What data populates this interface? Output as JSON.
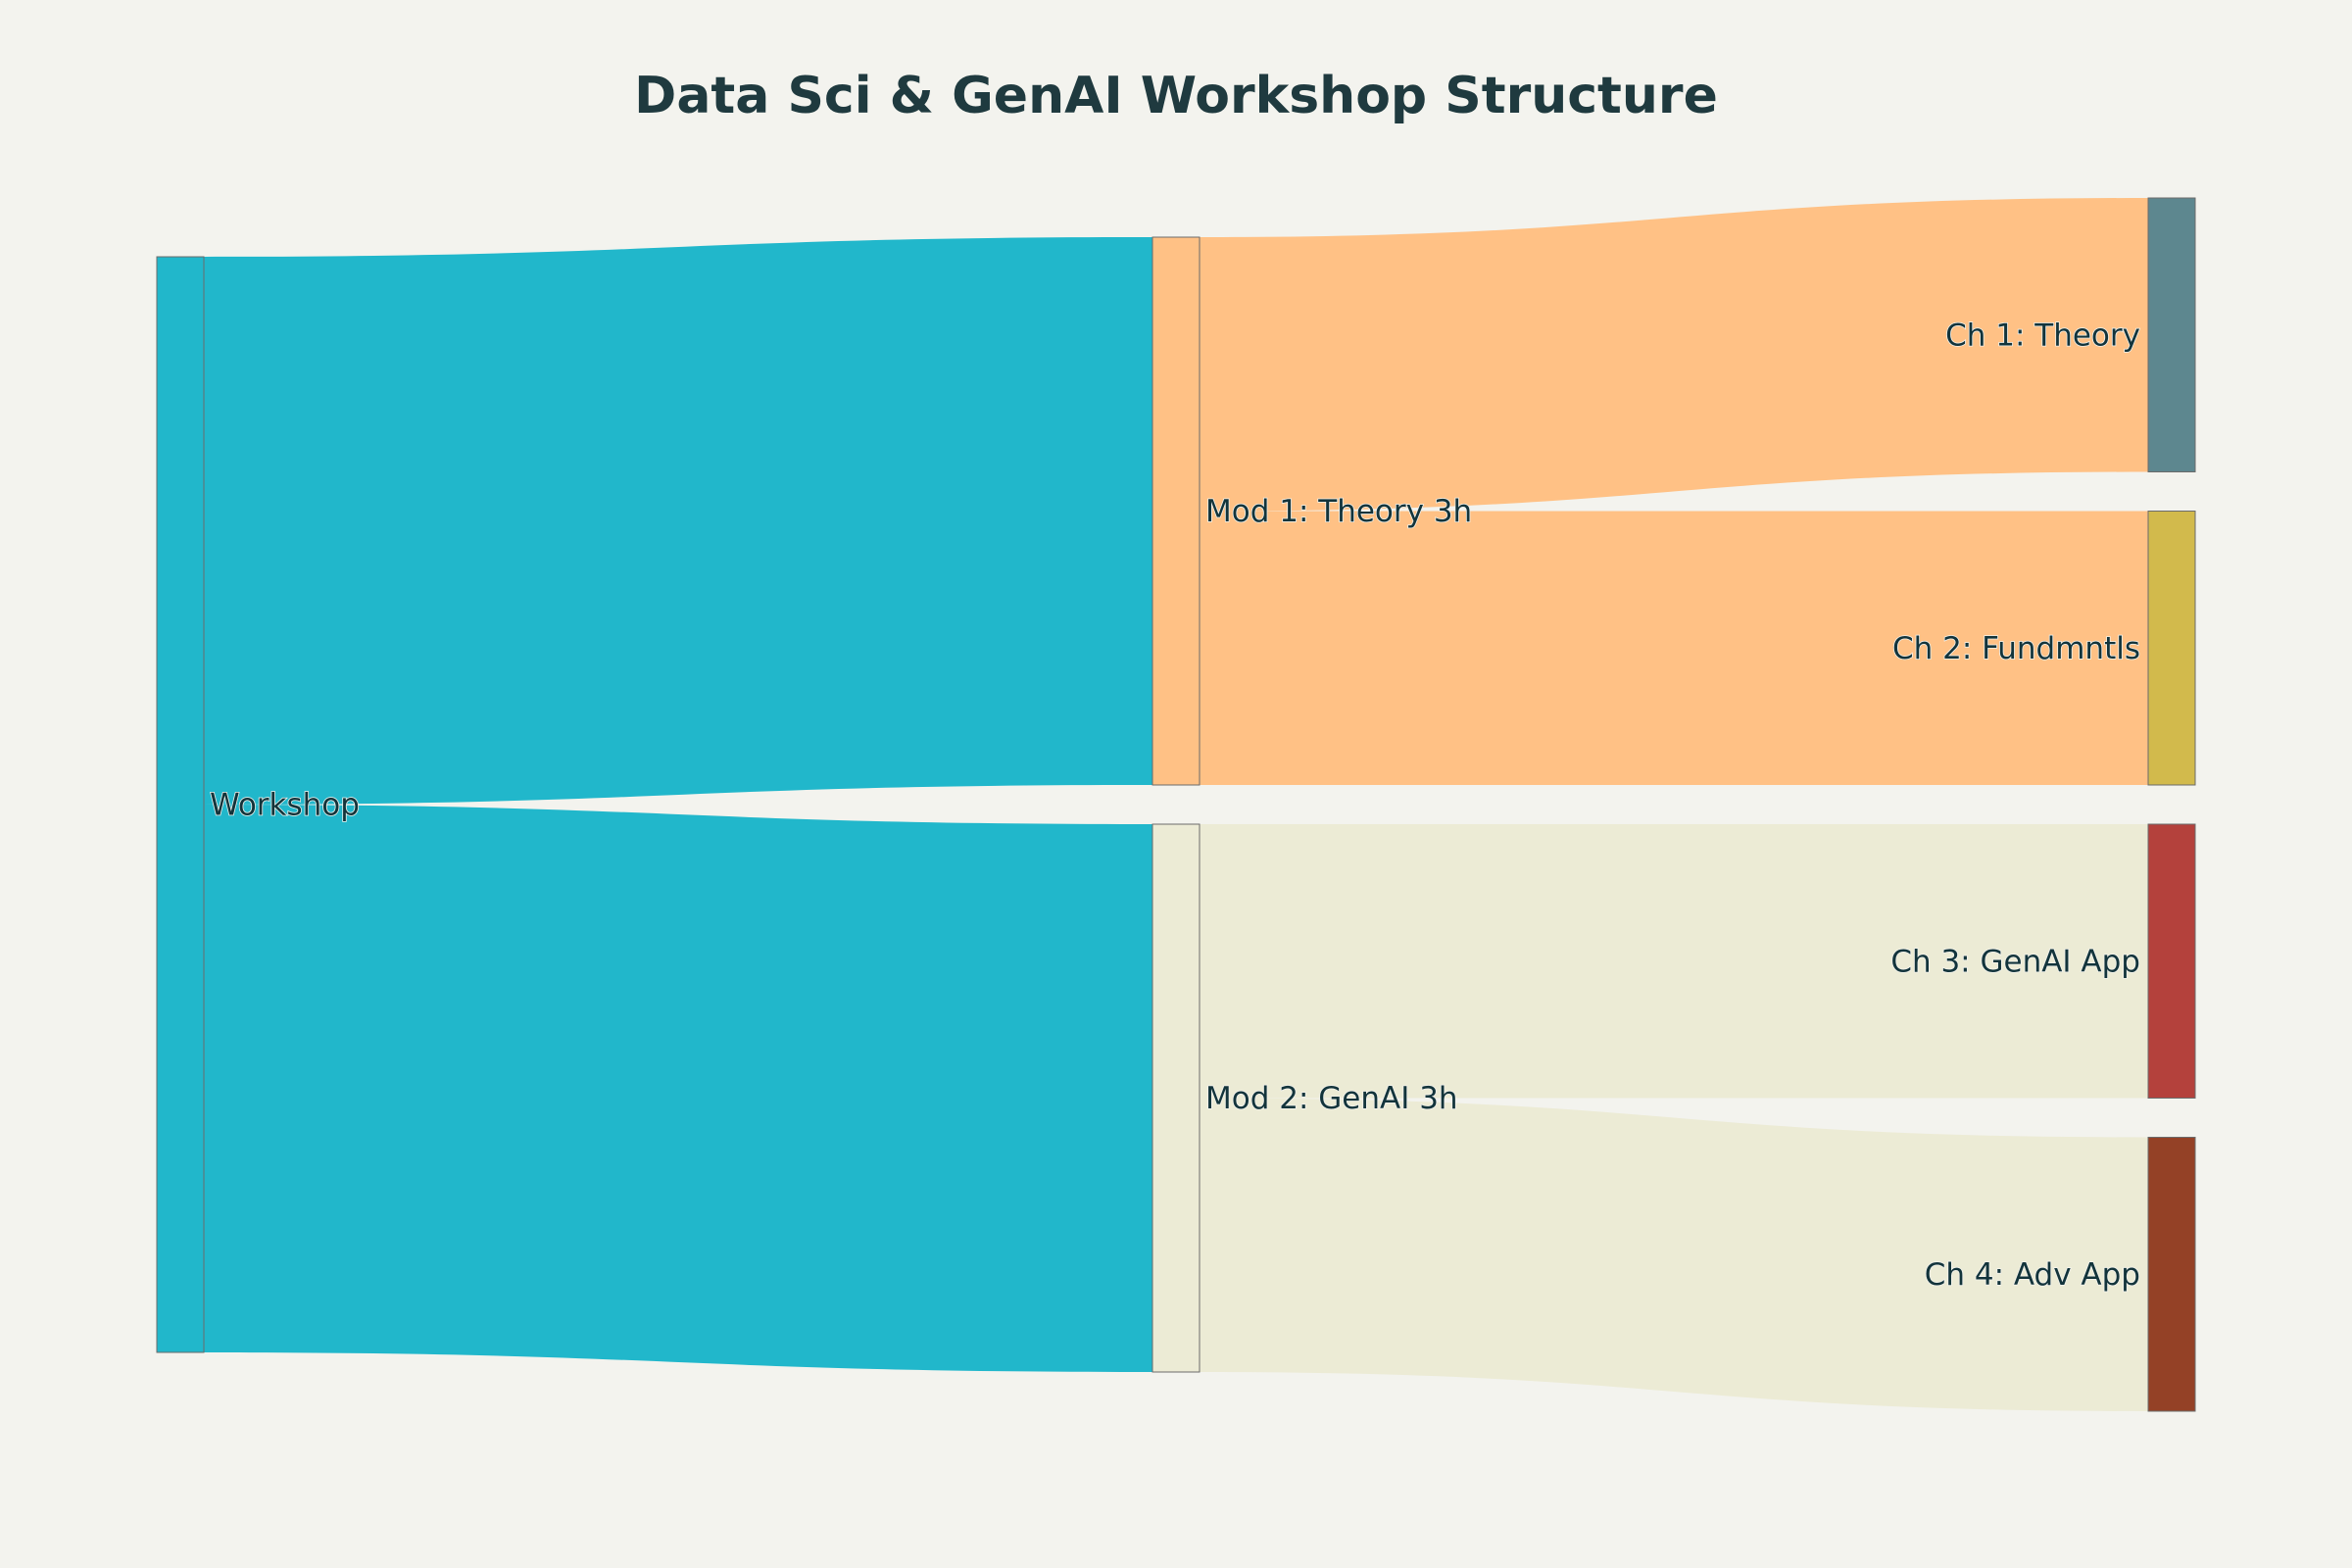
{
  "title": "Data Sci & GenAI Workshop Structure",
  "chart_data": {
    "type": "sankey",
    "nodes": [
      {
        "id": "workshop",
        "label": "Workshop",
        "color": "#21b7cb",
        "column": 0,
        "label_side": "right"
      },
      {
        "id": "mod1",
        "label": "Mod 1: Theory 3h",
        "color": "#ffc185",
        "column": 1,
        "label_side": "right"
      },
      {
        "id": "mod2",
        "label": "Mod 2: GenAI 3h",
        "color": "#ecebd5",
        "column": 1,
        "label_side": "right"
      },
      {
        "id": "ch1",
        "label": "Ch 1: Theory",
        "color": "#5d878f",
        "column": 2,
        "label_side": "left"
      },
      {
        "id": "ch2",
        "label": "Ch 2: Fundmntls",
        "color": "#d2ba4c",
        "column": 2,
        "label_side": "left"
      },
      {
        "id": "ch3",
        "label": "Ch 3: GenAI App",
        "color": "#b4413c",
        "column": 2,
        "label_side": "left"
      },
      {
        "id": "ch4",
        "label": "Ch 4: Adv App",
        "color": "#944454",
        "column": 2,
        "label_side": "left"
      }
    ],
    "links": [
      {
        "source": "workshop",
        "target": "mod1",
        "value": 3,
        "color": "#21b7cb"
      },
      {
        "source": "workshop",
        "target": "mod2",
        "value": 3,
        "color": "#21b7cb"
      },
      {
        "source": "mod1",
        "target": "ch1",
        "value": 1.5,
        "color": "#ffc185"
      },
      {
        "source": "mod1",
        "target": "ch2",
        "value": 1.5,
        "color": "#ffc185"
      },
      {
        "source": "mod2",
        "target": "ch3",
        "value": 1.5,
        "color": "#ecebd5"
      },
      {
        "source": "mod2",
        "target": "ch4",
        "value": 1.5,
        "color": "#ecebd5"
      }
    ],
    "colors": {
      "background": "#f3f3ee",
      "title": "#1f3a3f",
      "label": "#13343b",
      "node_border": "#6b6b6b",
      "ch4_node": "#944126"
    }
  }
}
